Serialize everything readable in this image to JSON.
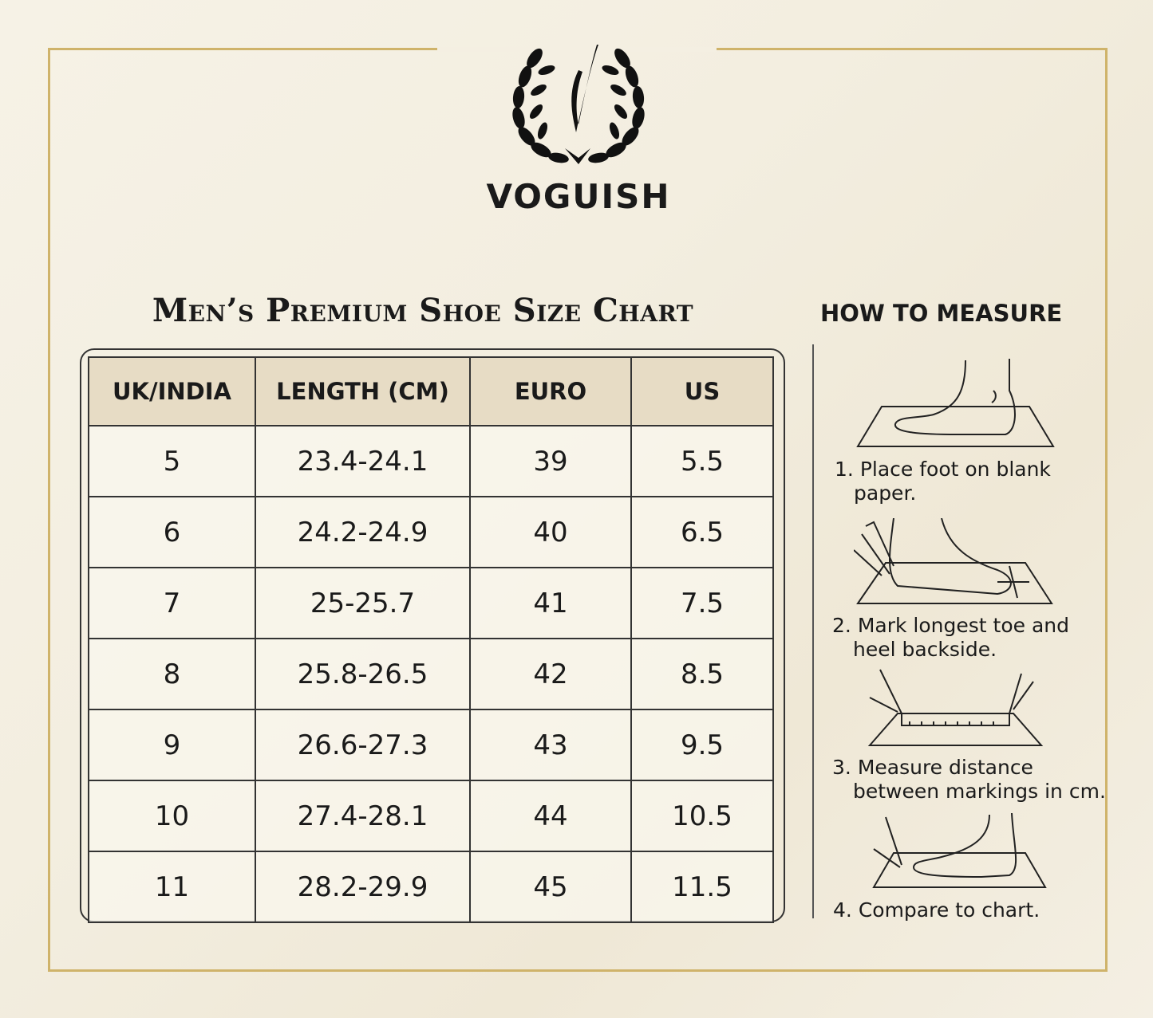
{
  "brand": {
    "name": "VOGUISH",
    "logo_icon": "laurel-wreath-v-monogram",
    "logo_letter": "V"
  },
  "colors": {
    "background": "#f3eee0",
    "frame_gold": "#cfb36a",
    "header_fill": "#e7dcc5",
    "ink": "#1a1a1a"
  },
  "title": "Men’s Premium Shoe Size Chart",
  "table": {
    "headers": [
      "UK/INDIA",
      "LENGTH (CM)",
      "EURO",
      "US"
    ],
    "rows": [
      [
        "5",
        "23.4-24.1",
        "39",
        "5.5"
      ],
      [
        "6",
        "24.2-24.9",
        "40",
        "6.5"
      ],
      [
        "7",
        "25-25.7",
        "41",
        "7.5"
      ],
      [
        "8",
        "25.8-26.5",
        "42",
        "8.5"
      ],
      [
        "9",
        "26.6-27.3",
        "43",
        "9.5"
      ],
      [
        "10",
        "27.4-28.1",
        "44",
        "10.5"
      ],
      [
        "11",
        "28.2-29.9",
        "45",
        "11.5"
      ]
    ]
  },
  "how_to_measure": {
    "heading": "HOW TO MEASURE",
    "steps": [
      {
        "num": "1.",
        "line1": "Place foot on blank",
        "line2": "paper.",
        "icon": "foot-on-paper-illustration"
      },
      {
        "num": "2.",
        "line1": "Mark longest toe and",
        "line2": "heel backside.",
        "icon": "marking-foot-illustration"
      },
      {
        "num": "3.",
        "line1": "Measure distance",
        "line2": "between markings in cm.",
        "icon": "ruler-measure-illustration"
      },
      {
        "num": "4.",
        "line1": "Compare to chart.",
        "line2": "",
        "icon": "compare-foot-illustration"
      }
    ]
  }
}
